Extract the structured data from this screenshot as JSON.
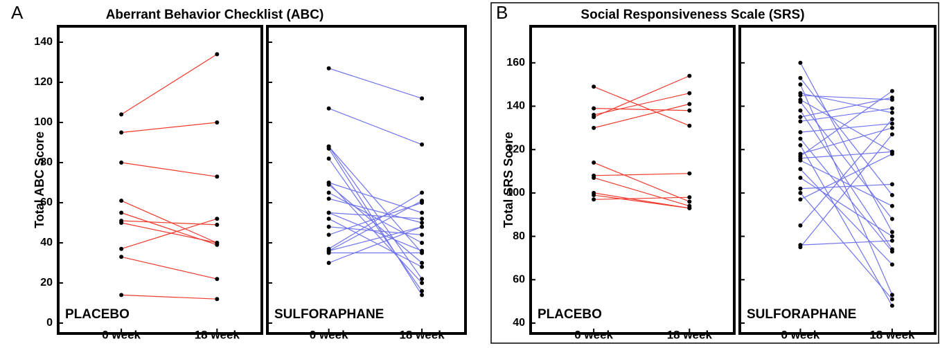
{
  "chart_data": [
    {
      "type": "paired-line",
      "panel_label": "A",
      "title": "Aberrant Behavior Checklist (ABC)",
      "y_label": "Total ABC Score",
      "ylim": [
        0,
        140
      ],
      "yticks": [
        0,
        20,
        40,
        60,
        80,
        100,
        120,
        140
      ],
      "panels": [
        {
          "label": "PLACEBO",
          "categories": [
            "0 week",
            "18 week"
          ],
          "color": "#f03a2e",
          "pairs": [
            [
              104,
              134
            ],
            [
              95,
              100
            ],
            [
              80,
              73
            ],
            [
              61,
              40
            ],
            [
              55,
              39
            ],
            [
              51,
              49
            ],
            [
              50,
              40
            ],
            [
              37,
              52
            ],
            [
              33,
              22
            ],
            [
              14,
              12
            ]
          ]
        },
        {
          "label": "SULFORAPHANE",
          "categories": [
            "0 week",
            "18 week"
          ],
          "color": "#6f73ee",
          "pairs": [
            [
              127,
              112
            ],
            [
              107,
              89
            ],
            [
              88,
              22
            ],
            [
              88,
              35
            ],
            [
              87,
              14
            ],
            [
              82,
              16
            ],
            [
              70,
              55
            ],
            [
              70,
              20
            ],
            [
              69,
              30
            ],
            [
              65,
              40
            ],
            [
              62,
              50
            ],
            [
              55,
              36
            ],
            [
              55,
              52
            ],
            [
              52,
              28
            ],
            [
              48,
              44
            ],
            [
              44,
              60
            ],
            [
              37,
              65
            ],
            [
              36,
              48
            ],
            [
              36,
              61
            ],
            [
              35,
              35
            ],
            [
              30,
              48
            ]
          ]
        }
      ]
    },
    {
      "type": "paired-line",
      "panel_label": "B",
      "title": "Social Responsiveness Scale (SRS)",
      "y_label": "Total SRS Score",
      "ylim": [
        40,
        166
      ],
      "yticks": [
        40,
        60,
        80,
        100,
        120,
        140,
        160
      ],
      "panels": [
        {
          "label": "PLACEBO",
          "categories": [
            "0 week",
            "18 week"
          ],
          "color": "#f03a2e",
          "pairs": [
            [
              149,
              131
            ],
            [
              139,
              138
            ],
            [
              136,
              146
            ],
            [
              135,
              154
            ],
            [
              130,
              141
            ],
            [
              114,
              96
            ],
            [
              108,
              109
            ],
            [
              107,
              94
            ],
            [
              100,
              93
            ],
            [
              99,
              93
            ],
            [
              97,
              98
            ]
          ]
        },
        {
          "label": "SULFORAPHANE",
          "categories": [
            "0 week",
            "18 week"
          ],
          "color": "#6f73ee",
          "pairs": [
            [
              160,
              82
            ],
            [
              153,
              99
            ],
            [
              150,
              53
            ],
            [
              146,
              137
            ],
            [
              145,
              143
            ],
            [
              143,
              119
            ],
            [
              142,
              88
            ],
            [
              138,
              74
            ],
            [
              135,
              144
            ],
            [
              133,
              139
            ],
            [
              128,
              132
            ],
            [
              125,
              73
            ],
            [
              122,
              48
            ],
            [
              118,
              130
            ],
            [
              117,
              147
            ],
            [
              116,
              119
            ],
            [
              115,
              94
            ],
            [
              111,
              67
            ],
            [
              107,
              80
            ],
            [
              102,
              104
            ],
            [
              100,
              51
            ],
            [
              97,
              118
            ],
            [
              85,
              134
            ],
            [
              76,
              78
            ],
            [
              75,
              127
            ]
          ]
        }
      ]
    }
  ]
}
